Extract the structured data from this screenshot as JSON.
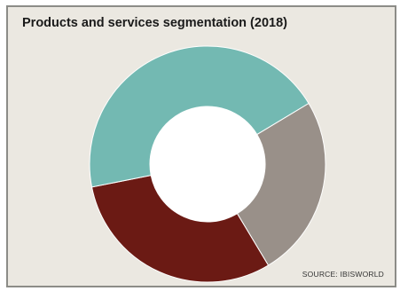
{
  "chart_data": {
    "type": "pie",
    "donut": true,
    "title": "Products and services segmentation (2018)",
    "source": "SOURCE: IBISWORLD",
    "slices": [
      {
        "value": 25.0,
        "color": "#999089"
      },
      {
        "value": 30.5,
        "color": "#6b1a14"
      },
      {
        "value": 44.5,
        "color": "#73b9b2"
      }
    ],
    "legend": "none",
    "background": "#ebe8e1"
  }
}
